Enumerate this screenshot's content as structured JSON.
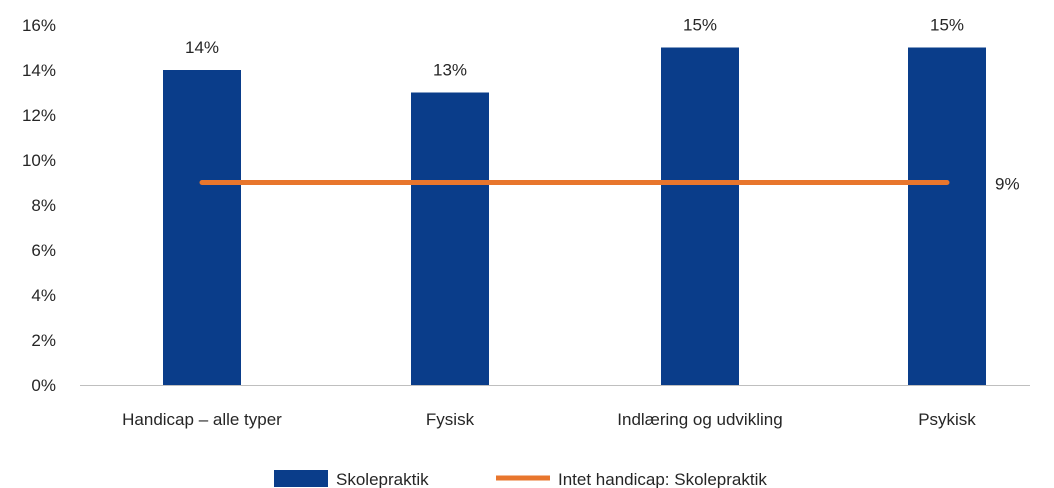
{
  "chart_data": {
    "type": "bar",
    "categories": [
      "Handicap – alle typer",
      "Fysisk",
      "Indlæring og udvikling",
      "Psykisk"
    ],
    "series": [
      {
        "name": "Skolepraktik",
        "type": "bar",
        "values": [
          14,
          13,
          15,
          15
        ],
        "labels": [
          "14%",
          "13%",
          "15%",
          "15%"
        ],
        "color": "#0a3d8a"
      },
      {
        "name": "Intet handicap: Skolepraktik",
        "type": "line",
        "values": [
          9,
          9,
          9,
          9
        ],
        "end_label": "9%",
        "color": "#e8762d"
      }
    ],
    "ylim": [
      0,
      16
    ],
    "yticks": [
      "0%",
      "2%",
      "4%",
      "6%",
      "8%",
      "10%",
      "12%",
      "14%",
      "16%"
    ],
    "ytick_values": [
      0,
      2,
      4,
      6,
      8,
      10,
      12,
      14,
      16
    ],
    "grid": false,
    "legend_position": "bottom"
  }
}
